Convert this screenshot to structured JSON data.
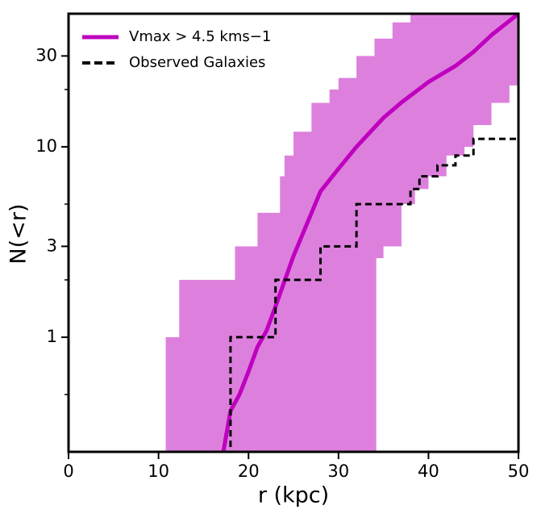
{
  "chart_data": {
    "type": "cumulative",
    "xlabel": "r (kpc)",
    "ylabel": "N(<r)",
    "xlim": [
      0,
      50
    ],
    "xticks": [
      0,
      10,
      20,
      30,
      40,
      50
    ],
    "ylim": [
      0.25,
      50
    ],
    "yscale": "log",
    "yticks": [
      1,
      3,
      10,
      30
    ],
    "yminor_ticks": [
      0.5,
      2,
      5,
      20
    ],
    "legend": "upper left",
    "band": {
      "color": "#dd80dd",
      "upper": {
        "x": [
          10.8,
          12.3,
          18.5,
          21,
          23.5,
          24,
          25,
          27,
          29,
          30,
          32,
          34,
          36,
          38,
          50
        ],
        "values": [
          1,
          2,
          3,
          4.5,
          7,
          9,
          12,
          17,
          20,
          23,
          30,
          37,
          45,
          50,
          50
        ]
      },
      "lower": {
        "x": [
          10.8,
          34.2,
          35,
          37,
          38.5,
          40,
          42,
          44,
          45,
          47,
          49,
          50
        ],
        "values": [
          0,
          2.6,
          3,
          5,
          6,
          7,
          9,
          10,
          13,
          17,
          21,
          22
        ]
      }
    },
    "series": [
      {
        "name": "Vmax > 4.5 kms−1",
        "color": "#bf00bf",
        "style": "solid",
        "x": [
          17.2,
          18,
          19,
          20,
          21,
          22,
          23,
          25,
          28,
          30,
          32,
          35,
          37,
          40,
          43,
          45,
          47,
          50
        ],
        "values": [
          0.25,
          0.41,
          0.5,
          0.66,
          0.89,
          1.08,
          1.45,
          2.67,
          5.83,
          7.67,
          10,
          14.2,
          17.1,
          21.9,
          26.6,
          31.5,
          38.6,
          50
        ]
      },
      {
        "name": "Observed Galaxies",
        "color": "#000000",
        "style": "step",
        "x": [
          18,
          23,
          28,
          32,
          38,
          39,
          41,
          43,
          45,
          50
        ],
        "values": [
          1,
          2,
          3,
          5,
          6,
          7,
          8,
          9,
          11,
          11
        ]
      }
    ]
  }
}
